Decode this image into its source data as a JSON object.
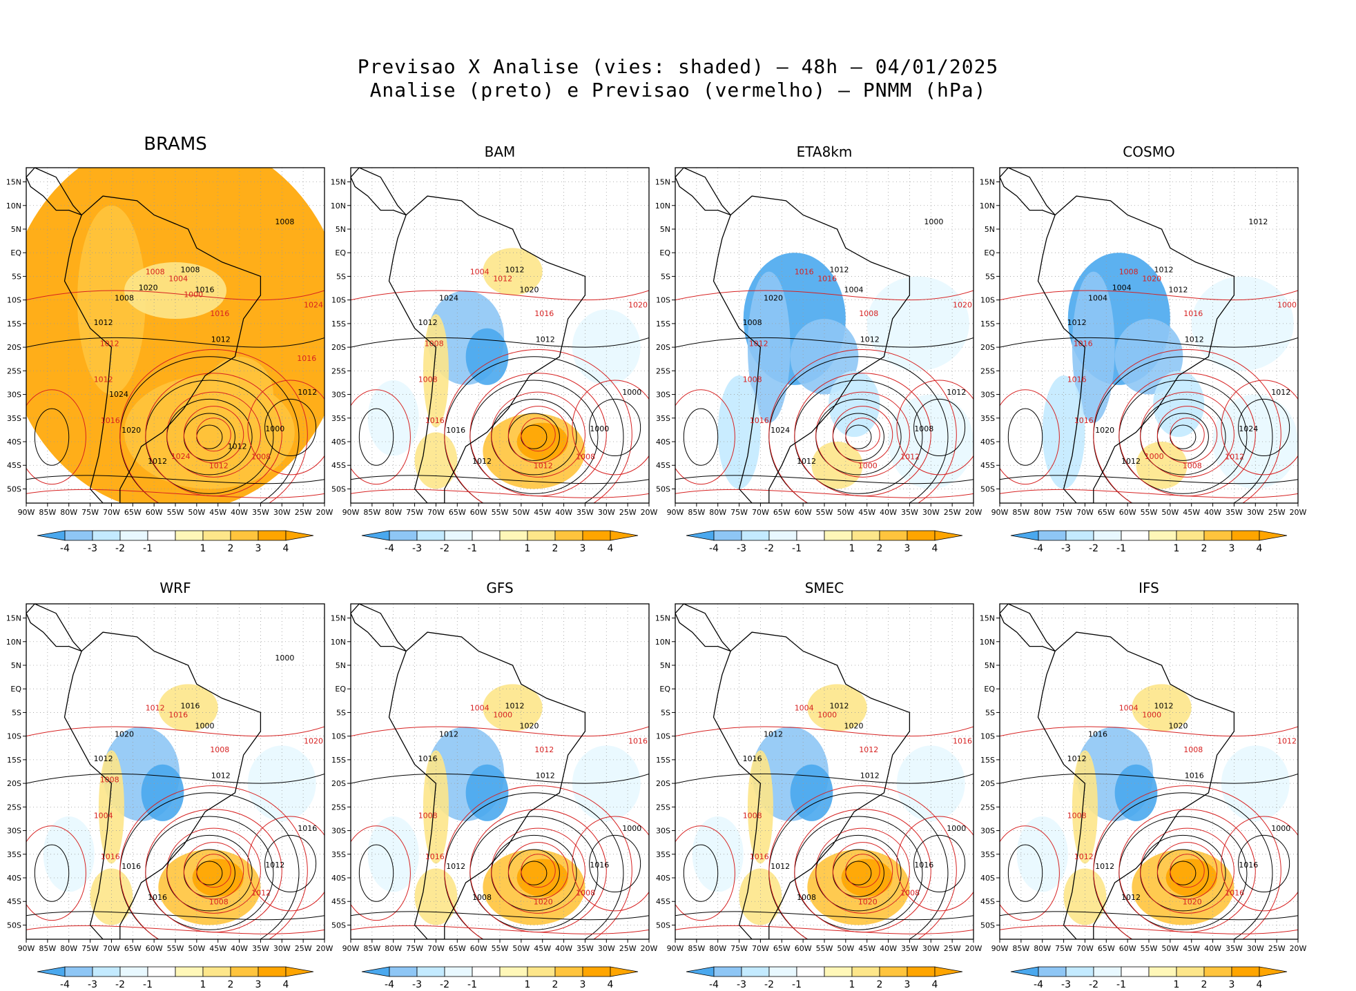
{
  "figure": {
    "title_line1": "Previsao X Analise (vies: shaded) — 48h — 04/01/2025",
    "title_line2": "Analise (preto) e Previsao (vermelho) — PNMM (hPa)"
  },
  "colors": {
    "analysis_contour": "#000000",
    "forecast_contour": "#d62020",
    "coast": "#000000",
    "grid": "#9a9a9a",
    "bias_palette": [
      "#4aa8ee",
      "#8ec6f5",
      "#c3eaff",
      "#e8f8ff",
      "#ffffff",
      "#fff7b8",
      "#fde68a",
      "#ffc43d",
      "#ffa500"
    ]
  },
  "axes": {
    "lon_labels": [
      "90W",
      "85W",
      "80W",
      "75W",
      "70W",
      "65W",
      "60W",
      "55W",
      "50W",
      "45W",
      "40W",
      "35W",
      "30W",
      "25W",
      "20W"
    ],
    "lat_labels": [
      "15N",
      "10N",
      "5N",
      "EQ",
      "5S",
      "10S",
      "15S",
      "20S",
      "25S",
      "30S",
      "35S",
      "40S",
      "45S",
      "50S"
    ]
  },
  "colorbar": {
    "labels": [
      "-4",
      "-3",
      "-2",
      "-1",
      "1",
      "2",
      "3",
      "4"
    ]
  },
  "panels": [
    {
      "name": "BRAMS",
      "bias": "warm",
      "labels": [
        "1012",
        "1016",
        "1008",
        "1008",
        "1012",
        "1016",
        "1012",
        "1008",
        "1012",
        "1012",
        "1016",
        "1012",
        "1008",
        "1024",
        "1020",
        "1004",
        "1000",
        "1012",
        "1008",
        "1024",
        "1020",
        "1016",
        "1024",
        "1000",
        "1012"
      ]
    },
    {
      "name": "BAM",
      "bias": "mixed",
      "labels": [
        "1012",
        "1016",
        "1012",
        "1008",
        "1012",
        "1016",
        "1012",
        "1004",
        "1000",
        "1008",
        "1020",
        "1012",
        "1024",
        "1020",
        "1016",
        "1012",
        "1000",
        "1008"
      ]
    },
    {
      "name": "ETA8km",
      "bias": "cool",
      "labels": [
        "1012",
        "1016",
        "1012",
        "1012",
        "1008",
        "1008",
        "1012",
        "1016",
        "1012",
        "1008",
        "1004",
        "1000",
        "1020",
        "1020",
        "1024",
        "1016",
        "1008",
        "1012",
        "1000"
      ]
    },
    {
      "name": "COSMO",
      "bias": "cool",
      "labels": [
        "1012",
        "1016",
        "1012",
        "1012",
        "1012",
        "1016",
        "1012",
        "1008",
        "1012",
        "1016",
        "1012",
        "1008",
        "1004",
        "1000",
        "1020",
        "1020",
        "1024",
        "1016",
        "1012",
        "1000",
        "1004"
      ]
    },
    {
      "name": "WRF",
      "bias": "mixed",
      "labels": [
        "1012",
        "1016",
        "1016",
        "1012",
        "1012",
        "1008",
        "1016",
        "1012",
        "1016",
        "1004",
        "1000",
        "1008",
        "1020",
        "1020",
        "1016",
        "1016",
        "1012",
        "1008",
        "1000"
      ]
    },
    {
      "name": "GFS",
      "bias": "mixed",
      "labels": [
        "1012",
        "1016",
        "1012",
        "1008",
        "1016",
        "1012",
        "1008",
        "1004",
        "1000",
        "1008",
        "1020",
        "1020",
        "1012",
        "1016",
        "1012",
        "1000",
        "1016"
      ]
    },
    {
      "name": "SMEC",
      "bias": "mixed",
      "labels": [
        "1012",
        "1016",
        "1012",
        "1008",
        "1016",
        "1012",
        "1008",
        "1004",
        "1000",
        "1008",
        "1020",
        "1020",
        "1012",
        "1016",
        "1012",
        "1000",
        "1016"
      ]
    },
    {
      "name": "IFS",
      "bias": "mixed",
      "labels": [
        "1016",
        "1012",
        "1012",
        "1016",
        "1012",
        "1008",
        "1012",
        "1004",
        "1000",
        "1008",
        "1020",
        "1020",
        "1016",
        "1012",
        "1012",
        "1000",
        "1016"
      ]
    }
  ]
}
